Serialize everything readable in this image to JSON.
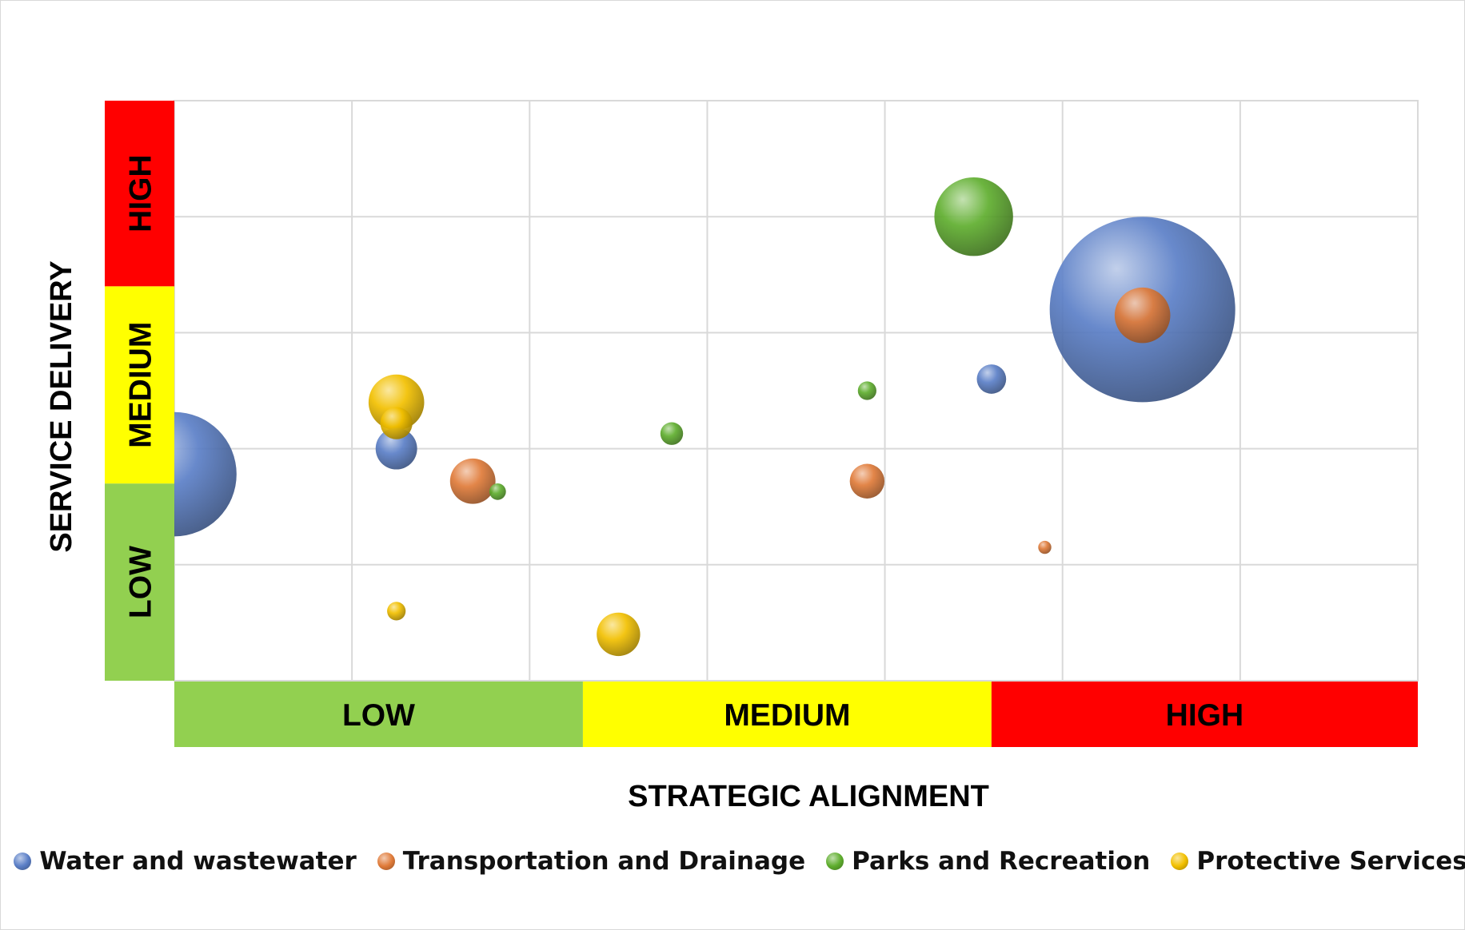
{
  "chart_data": {
    "type": "bubble",
    "xlabel": "STRATEGIC ALIGNMENT",
    "ylabel": "SERVICE DELIVERY",
    "xlim": [
      0,
      7
    ],
    "ylim": [
      0,
      5
    ],
    "grid": true,
    "legend_position": "bottom",
    "x_bands": [
      {
        "label": "LOW",
        "from": 0,
        "to": 2.3,
        "color": "#92d050"
      },
      {
        "label": "MEDIUM",
        "from": 2.3,
        "to": 4.6,
        "color": "#ffff00"
      },
      {
        "label": "HIGH",
        "from": 4.6,
        "to": 7,
        "color": "#ff0000"
      }
    ],
    "y_bands": [
      {
        "label": "LOW",
        "from": 0,
        "to": 1.7,
        "color": "#92d050"
      },
      {
        "label": "MEDIUM",
        "from": 1.7,
        "to": 3.4,
        "color": "#ffff00"
      },
      {
        "label": "HIGH",
        "from": 3.4,
        "to": 5,
        "color": "#ff0000"
      }
    ],
    "series": [
      {
        "name": "Water and wastewater",
        "color": "#5b7fc7",
        "points": [
          {
            "x": 0.0,
            "y": 1.78,
            "size": 45
          },
          {
            "x": 1.25,
            "y": 2.0,
            "size": 5
          },
          {
            "x": 4.6,
            "y": 2.6,
            "size": 2.5
          },
          {
            "x": 5.45,
            "y": 3.2,
            "size": 100
          }
        ]
      },
      {
        "name": "Transportation and Drainage",
        "color": "#e07b39",
        "points": [
          {
            "x": 1.68,
            "y": 1.72,
            "size": 6
          },
          {
            "x": 3.9,
            "y": 1.72,
            "size": 3.5
          },
          {
            "x": 4.9,
            "y": 1.15,
            "size": 0.5
          },
          {
            "x": 5.45,
            "y": 3.15,
            "size": 9
          }
        ]
      },
      {
        "name": "Parks and Recreation",
        "color": "#5fae2e",
        "points": [
          {
            "x": 1.82,
            "y": 1.63,
            "size": 0.8
          },
          {
            "x": 2.8,
            "y": 2.13,
            "size": 1.5
          },
          {
            "x": 3.9,
            "y": 2.5,
            "size": 1.0
          },
          {
            "x": 4.5,
            "y": 4.0,
            "size": 18
          }
        ]
      },
      {
        "name": "Protective Services",
        "color": "#f2c000",
        "points": [
          {
            "x": 1.25,
            "y": 2.4,
            "size": 9
          },
          {
            "x": 1.25,
            "y": 2.22,
            "size": 3
          },
          {
            "x": 1.25,
            "y": 0.6,
            "size": 1.0
          },
          {
            "x": 2.5,
            "y": 0.4,
            "size": 5.5
          }
        ]
      }
    ]
  }
}
